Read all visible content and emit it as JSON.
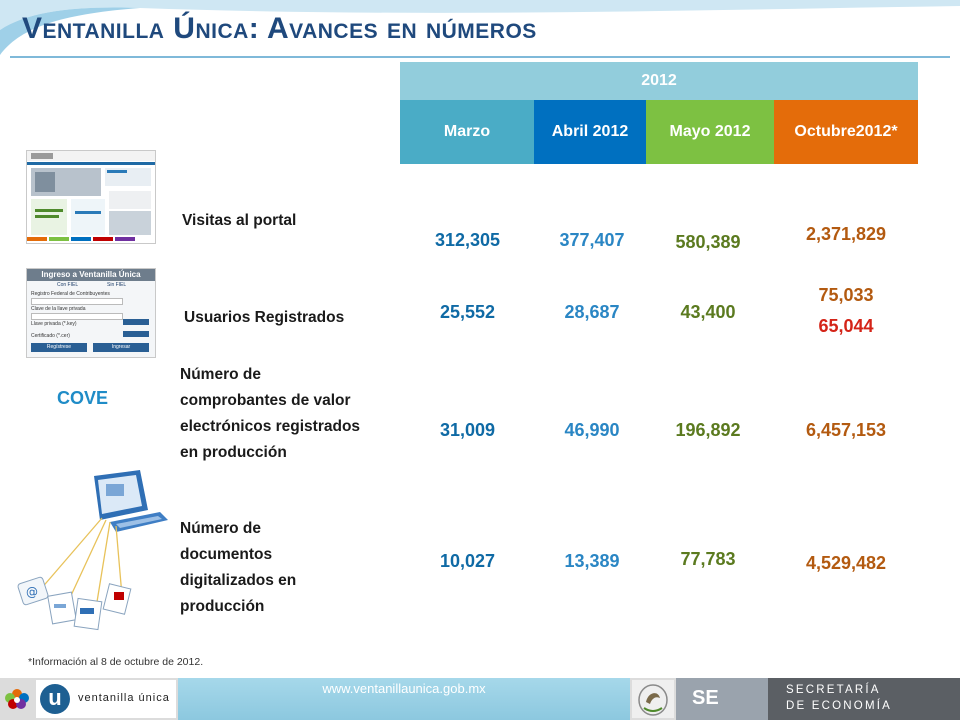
{
  "title": "Ventanilla Única: Avances en números",
  "table": {
    "year": "2012",
    "months": [
      "Marzo",
      "Abril 2012",
      "Mayo  2012",
      "Octubre2012*"
    ],
    "cove_label": "COVE",
    "rows": [
      {
        "label": "Visitas al portal",
        "values": [
          "312,305",
          "377,407",
          "580,389",
          "2,371,829"
        ]
      },
      {
        "label": "Usuarios Registrados",
        "values": [
          "25,552",
          "28,687",
          "43,400",
          "75,033"
        ],
        "extra_value": "65,044"
      },
      {
        "label_lines": [
          "Número de",
          "comprobantes de valor",
          "electrónicos registrados",
          "en producción"
        ],
        "values": [
          "31,009",
          "46,990",
          "196,892",
          "6,457,153"
        ]
      },
      {
        "label_lines": [
          "Número de",
          "documentos",
          "digitalizados en",
          "producción"
        ],
        "values": [
          "10,027",
          "13,389",
          "77,783",
          "4,529,482"
        ]
      }
    ]
  },
  "thumbs": {
    "login_title": "Ingreso a Ventanilla Única",
    "login_fields": [
      "Registro Federal de Contribuyentes",
      "Clave de la llave privada",
      "Llave privada (*.key)",
      "Certificado (*.cer)"
    ],
    "login_buttons": [
      "Regístrese",
      "Ingresar"
    ],
    "login_options": [
      "Con FIEL",
      "Sin FIEL"
    ]
  },
  "footnote": "*Información al 8 de octubre de 2012.",
  "footer": {
    "url": "www.ventanillaunica.gob.mx",
    "logo_text": "ventanilla única",
    "se": "SE",
    "secretaria_lines": [
      "SECRETARÍA",
      "DE ECONOMÍA"
    ]
  },
  "colors": {
    "title": "#1f497d",
    "year_band": "#92cddc",
    "marzo": "#4aacc6",
    "abril": "#0070c0",
    "mayo": "#7dc142",
    "octubre": "#e46c0a",
    "highlight_red": "#d42418"
  }
}
